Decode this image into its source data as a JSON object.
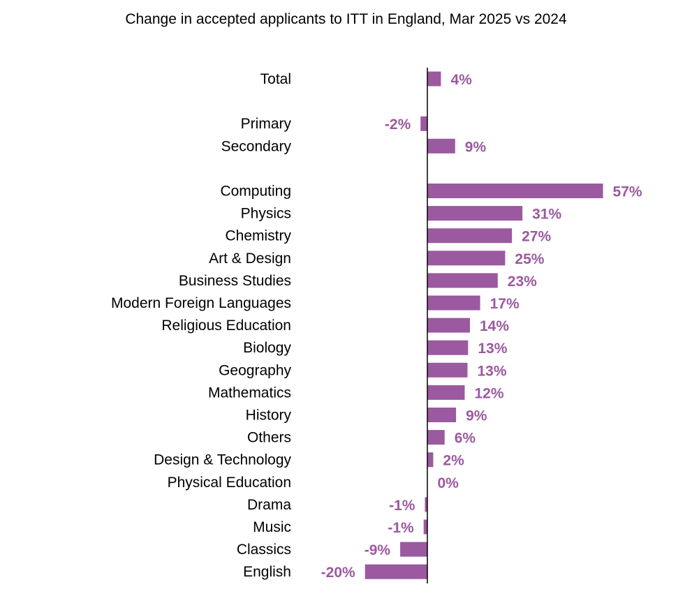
{
  "chart_data": {
    "type": "bar",
    "orientation": "horizontal",
    "title": "Change in accepted applicants to ITT in England,  Mar 2025 vs 2024",
    "xlabel": "",
    "ylabel": "",
    "xlim": [
      -20,
      57
    ],
    "grid": false,
    "legend": "none",
    "bar_color": "#9B59A0",
    "label_color": "#9B59A0",
    "axis_color": "#000000",
    "unit_suffix": "%",
    "categories": [
      "Total",
      "",
      "Primary",
      "Secondary",
      "",
      "Computing",
      "Physics",
      "Chemistry",
      "Art & Design",
      "Business Studies",
      "Modern Foreign Languages",
      "Religious Education",
      "Biology",
      "Geography",
      "Mathematics",
      "History",
      "Others",
      "Design & Technology",
      "Physical Education",
      "Drama",
      "Music",
      "Classics",
      "English"
    ],
    "values": [
      4.4,
      null,
      -2.2,
      9,
      null,
      56.9,
      30.8,
      27.4,
      25.2,
      22.8,
      17.1,
      13.8,
      13.2,
      13,
      12.1,
      9.3,
      5.6,
      1.9,
      0.1,
      -0.8,
      -1.2,
      -8.8,
      -20.2
    ],
    "data_labels": [
      "4%",
      "",
      "-2%",
      "9%",
      "",
      "57%",
      "31%",
      "27%",
      "25%",
      "23%",
      "17%",
      "14%",
      "13%",
      "13%",
      "12%",
      "9%",
      "6%",
      "2%",
      "0%",
      "-1%",
      "-1%",
      "-9%",
      "-20%"
    ]
  }
}
